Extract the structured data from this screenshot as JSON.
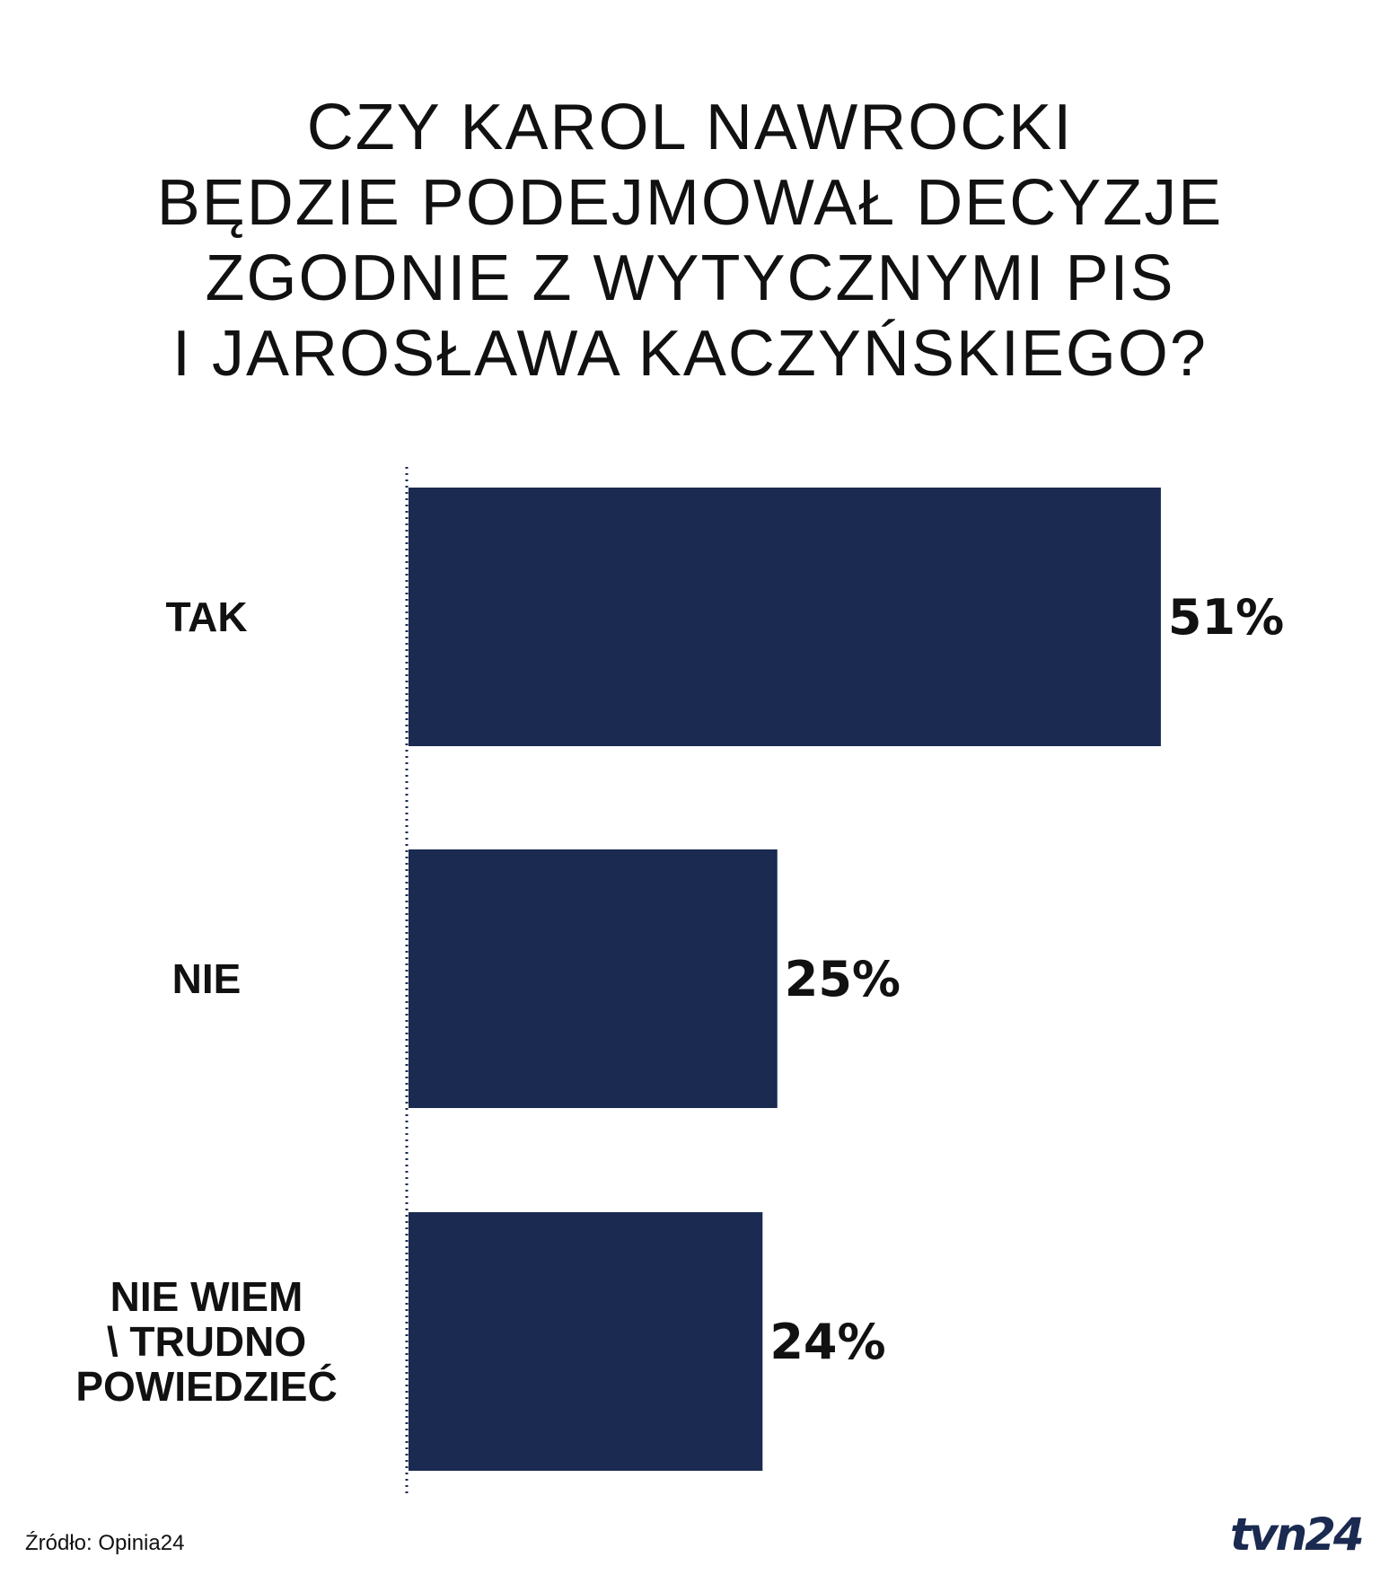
{
  "chart_data": {
    "type": "bar",
    "orientation": "horizontal",
    "title_lines": [
      "CZY KAROL NAWROCKI",
      "BĘDZIE PODEJMOWAŁ DECYZJE",
      "ZGODNIE Z WYTYCZNYMI PIS",
      "I JAROSŁAWA KACZYŃSKIEGO?"
    ],
    "categories": [
      [
        "TAK"
      ],
      [
        "NIE"
      ],
      [
        "NIE WIEM",
        "\\ TRUDNO",
        "POWIEDZIEĆ"
      ]
    ],
    "values": [
      51,
      25,
      24
    ],
    "value_labels": [
      "51%",
      "25%",
      "24%"
    ],
    "bar_color": "#1a2a50",
    "axis_style": "dotted",
    "grid": false,
    "legend": "none"
  },
  "footer": {
    "source": "Źródło: Opinia24",
    "logo_text": "tvn24"
  }
}
